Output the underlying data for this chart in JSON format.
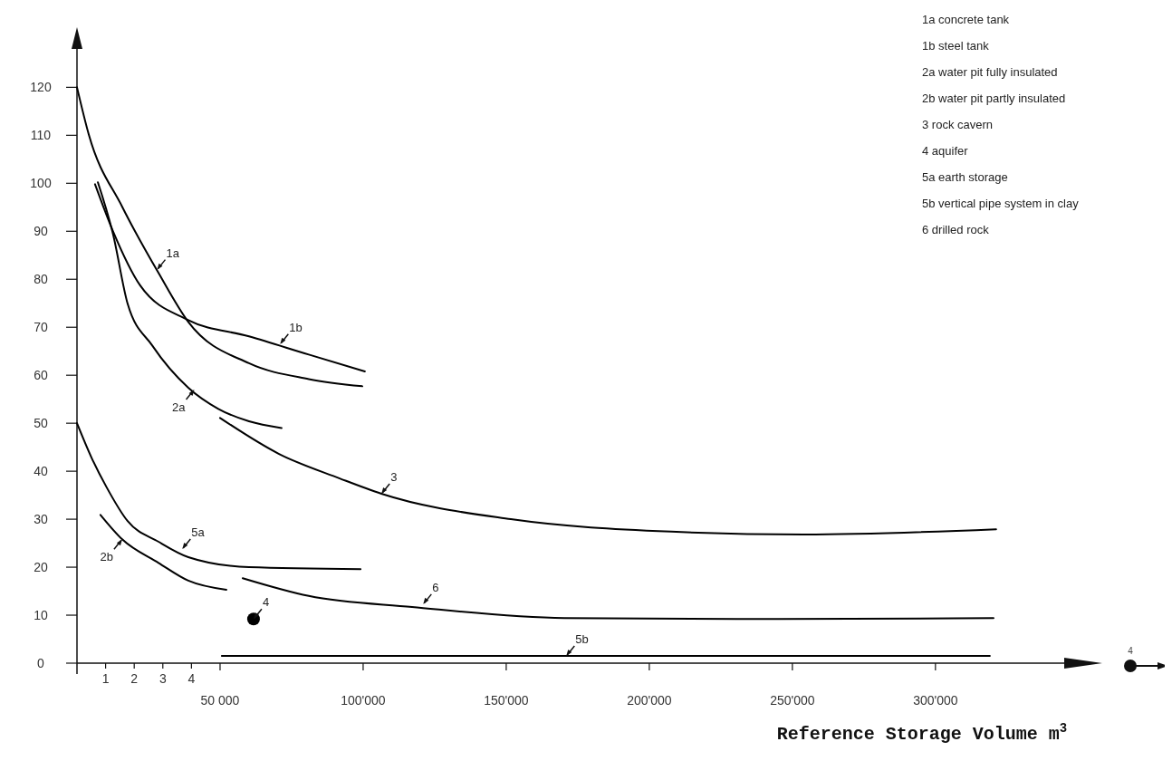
{
  "chart_data": {
    "type": "line",
    "xlabel": "Reference Storage Volume m$^{3}$",
    "xlim": [
      0,
      345000
    ],
    "ylim": [
      0,
      128
    ],
    "x2lim": [
      0,
      34.5
    ],
    "x2ticks": [
      1,
      2,
      3,
      4
    ],
    "xticks": [
      {
        "value": 50000,
        "label": "50 000"
      },
      {
        "value": 100000,
        "label": "100'000"
      },
      {
        "value": 150000,
        "label": "150'000"
      },
      {
        "value": 200000,
        "label": "200'000"
      },
      {
        "value": 250000,
        "label": "250'000"
      },
      {
        "value": 300000,
        "label": "300'000"
      }
    ],
    "yticks": [
      0,
      10,
      20,
      30,
      40,
      50,
      60,
      70,
      80,
      90,
      100,
      110,
      120
    ],
    "grid": false,
    "marker": "none",
    "line_style": "solid",
    "series": [
      {
        "color": "#000000",
        "x": [
          0,
          4100,
          15800,
          28500,
          38900,
          60100,
          81000,
          99700
        ],
        "values": [
          120,
          110.2,
          95.1,
          81.3,
          71.1,
          62.5,
          59.2,
          57.7
        ]
      },
      {
        "color": "#000000",
        "x": [
          6300,
          12600,
          22100,
          38900,
          60100,
          81000,
          100600
        ],
        "values": [
          99.8,
          90,
          78.7,
          71.5,
          68.1,
          64.3,
          60.8
        ]
      },
      {
        "color": "#000000",
        "x": [
          7300,
          12600,
          17700,
          26300,
          38900,
          49400,
          60100,
          71500
        ],
        "values": [
          100.2,
          89.4,
          74.9,
          66.2,
          57.4,
          53,
          50.4,
          49
        ]
      },
      {
        "color": "#000000",
        "x": [
          50000,
          70600,
          91800,
          106400,
          151600,
          207600,
          254100,
          321200
        ],
        "values": [
          51.1,
          43.6,
          38.5,
          35.3,
          30,
          27.4,
          26.8,
          27.9
        ]
      },
      {
        "color": "#000000",
        "x": [
          0,
          5100,
          10400,
          17700,
          28500,
          38900,
          60100,
          99100
        ],
        "values": [
          50,
          42.8,
          36.6,
          29.6,
          25.3,
          22.1,
          20,
          19.6
        ]
      },
      {
        "color": "#000000",
        "x": [
          8200,
          15800,
          28500,
          38900,
          52200
        ],
        "values": [
          30.9,
          25.8,
          20.9,
          17.2,
          15.3
        ]
      },
      {
        "color": "#000000",
        "x": [
          57900,
          81000,
          117100,
          170300,
          245000,
          320300
        ],
        "values": [
          17.7,
          14,
          11.7,
          9.4,
          9.2,
          9.4
        ]
      },
      {
        "color": "#000000",
        "x": [
          50600,
          319000
        ],
        "values": [
          1.5,
          1.5
        ]
      },
      {
        "type": "scatter",
        "marker": "circle",
        "color": "#000000",
        "x": [
          61700
        ],
        "values": [
          9.2
        ]
      }
    ],
    "annotations": [
      "1a concrete tank",
      "1b steel tank",
      "2a water pit fully insulated",
      "2b water pit partly insulated",
      "3 rock cavern",
      "4 aquifer",
      "5a earth storage",
      "5b vertical pipe system in clay",
      "6 drilled rock",
      {
        "text": "1a",
        "x": 28000,
        "y": 82
      },
      {
        "text": "1b",
        "x": 71000,
        "y": 66.5
      },
      {
        "text": "2a",
        "x": 41000,
        "y": 57
      },
      {
        "text": "3",
        "x": 106400,
        "y": 35.3
      },
      {
        "text": "5a",
        "x": 36800,
        "y": 23.8
      },
      {
        "text": "2b",
        "x": 15800,
        "y": 25.8
      },
      {
        "text": "6",
        "x": 121000,
        "y": 12.3
      },
      {
        "text": "5b",
        "x": 171000,
        "y": 1.5
      },
      {
        "text": "4",
        "x": 61700,
        "y": 9.2
      },
      "4"
    ]
  }
}
